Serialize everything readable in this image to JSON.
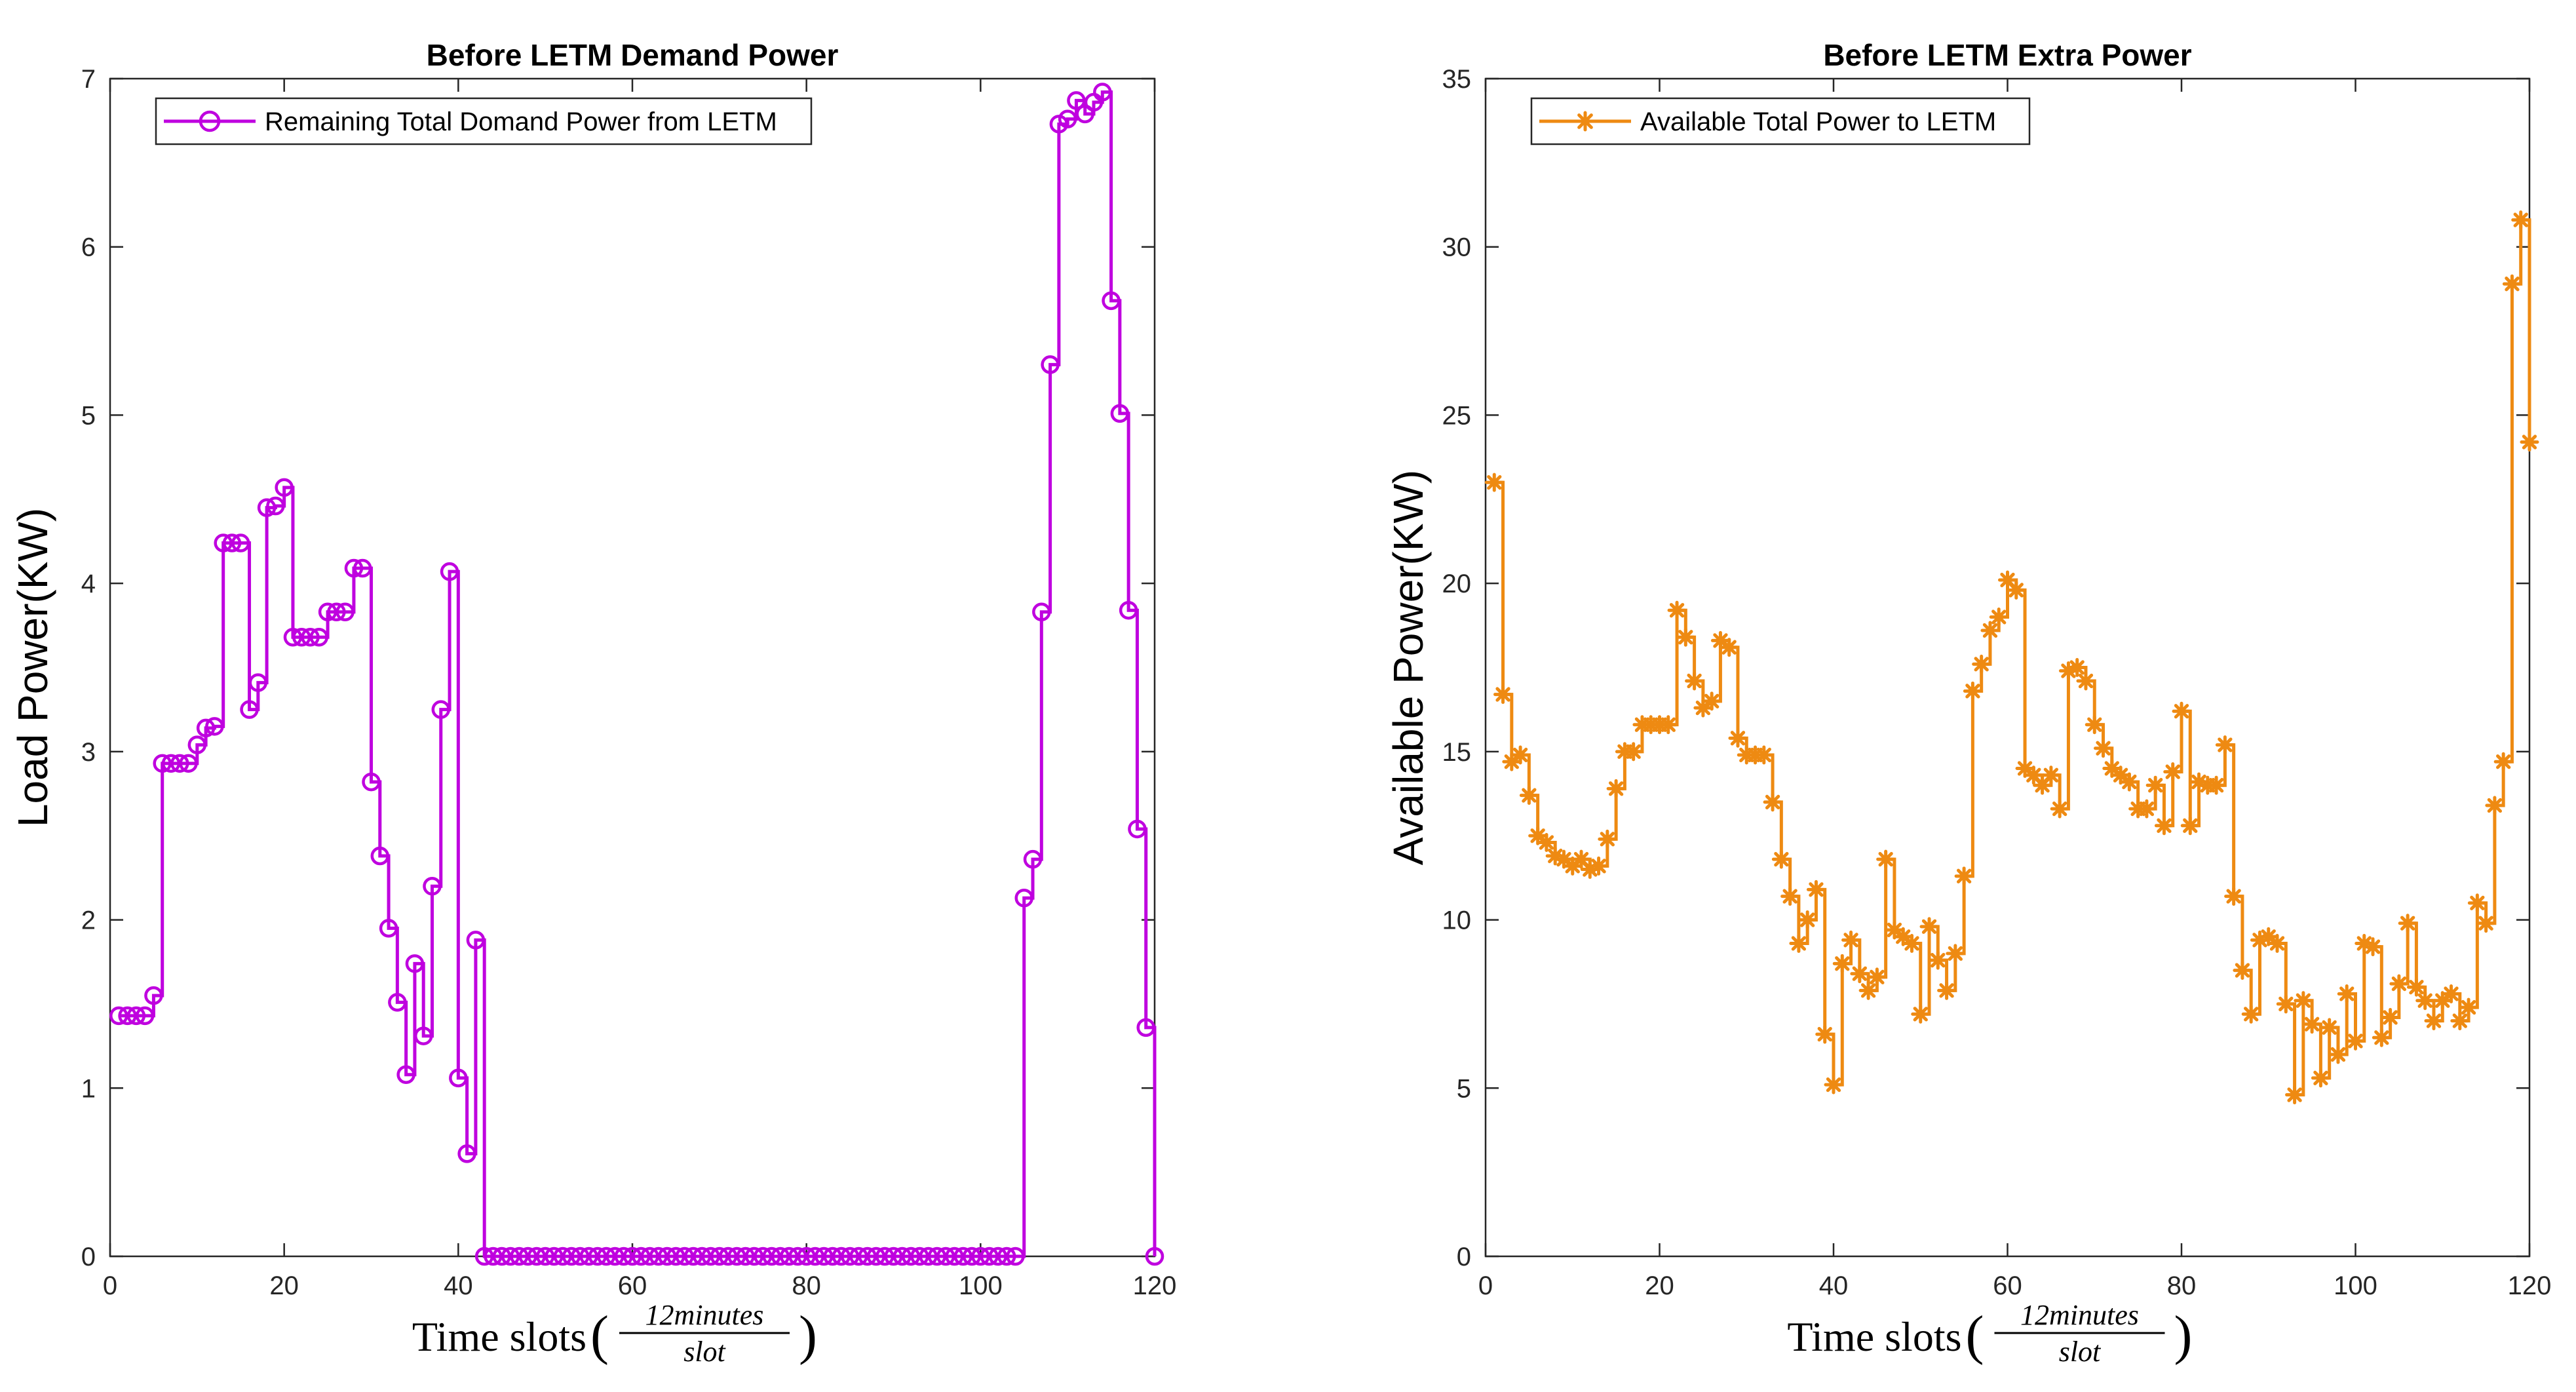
{
  "chart_data": [
    {
      "type": "line",
      "style": "stairs",
      "title": "Before LETM Demand Power",
      "xlabel": "Time slots",
      "xlabel_frac_num": "12minutes",
      "xlabel_frac_den": "slot",
      "ylabel": "Load Power(KW)",
      "xlim": [
        0,
        120
      ],
      "ylim": [
        0,
        7
      ],
      "xticks": [
        0,
        20,
        40,
        60,
        80,
        100,
        120
      ],
      "yticks": [
        0,
        1,
        2,
        3,
        4,
        5,
        6,
        7
      ],
      "color": "#BF00DF",
      "marker": "circle",
      "legend": {
        "position": "top-left"
      },
      "series": [
        {
          "name": "Remaining Total Domand Power from LETM",
          "x_start": 1,
          "values": [
            1.43,
            1.43,
            1.43,
            1.43,
            1.55,
            2.93,
            2.93,
            2.93,
            2.93,
            3.04,
            3.14,
            3.15,
            4.24,
            4.24,
            4.24,
            3.25,
            3.41,
            4.45,
            4.46,
            4.57,
            3.68,
            3.68,
            3.68,
            3.68,
            3.83,
            3.83,
            3.83,
            4.09,
            4.09,
            2.82,
            2.38,
            1.95,
            1.51,
            1.08,
            1.74,
            1.31,
            2.2,
            3.25,
            4.07,
            1.06,
            0.61,
            1.88,
            0,
            0,
            0,
            0,
            0,
            0,
            0,
            0,
            0,
            0,
            0,
            0,
            0,
            0,
            0,
            0,
            0,
            0,
            0,
            0,
            0,
            0,
            0,
            0,
            0,
            0,
            0,
            0,
            0,
            0,
            0,
            0,
            0,
            0,
            0,
            0,
            0,
            0,
            0,
            0,
            0,
            0,
            0,
            0,
            0,
            0,
            0,
            0,
            0,
            0,
            0,
            0,
            0,
            0,
            0,
            0,
            0,
            0,
            0,
            0,
            0,
            0,
            2.13,
            2.36,
            3.83,
            5.3,
            6.73,
            6.76,
            6.87,
            6.79,
            6.86,
            6.92,
            5.68,
            5.01,
            3.84,
            2.54,
            1.36,
            0
          ]
        }
      ]
    },
    {
      "type": "line",
      "style": "stairs",
      "title": "Before LETM Extra Power",
      "xlabel": "Time slots",
      "xlabel_frac_num": "12minutes",
      "xlabel_frac_den": "slot",
      "ylabel": "Available Power(KW)",
      "xlim": [
        0,
        120
      ],
      "ylim": [
        0,
        35
      ],
      "xticks": [
        0,
        20,
        40,
        60,
        80,
        100,
        120
      ],
      "yticks": [
        0,
        5,
        10,
        15,
        20,
        25,
        30,
        35
      ],
      "color": "#EE8A12",
      "marker": "asterisk",
      "legend": {
        "position": "top-left"
      },
      "series": [
        {
          "name": "Available Total Power to LETM",
          "x_start": 1,
          "values": [
            23.0,
            16.7,
            14.7,
            14.9,
            13.7,
            12.5,
            12.3,
            11.9,
            11.8,
            11.6,
            11.8,
            11.5,
            11.6,
            12.4,
            13.9,
            15.0,
            15.0,
            15.8,
            15.8,
            15.8,
            15.8,
            19.2,
            18.4,
            17.1,
            16.3,
            16.5,
            18.3,
            18.1,
            15.4,
            14.9,
            14.9,
            14.9,
            13.5,
            11.8,
            10.7,
            9.3,
            10.0,
            10.9,
            6.6,
            5.1,
            8.7,
            9.4,
            8.4,
            7.9,
            8.3,
            11.8,
            9.7,
            9.5,
            9.3,
            7.2,
            9.8,
            8.8,
            7.9,
            9.0,
            11.3,
            16.8,
            17.6,
            18.6,
            19.0,
            20.1,
            19.8,
            14.5,
            14.3,
            14.0,
            14.3,
            13.3,
            17.4,
            17.5,
            17.1,
            15.8,
            15.1,
            14.5,
            14.3,
            14.1,
            13.3,
            13.3,
            14.0,
            12.8,
            14.4,
            16.2,
            12.8,
            14.1,
            14.0,
            14.0,
            15.2,
            10.7,
            8.5,
            7.2,
            9.4,
            9.5,
            9.3,
            7.5,
            4.8,
            7.6,
            6.9,
            5.3,
            6.8,
            6.0,
            7.8,
            6.4,
            9.3,
            9.2,
            6.5,
            7.1,
            8.1,
            9.9,
            8.0,
            7.6,
            7.0,
            7.6,
            7.8,
            7.0,
            7.4,
            10.5,
            9.9,
            13.4,
            14.7,
            28.9,
            30.8,
            24.2
          ]
        }
      ]
    }
  ]
}
